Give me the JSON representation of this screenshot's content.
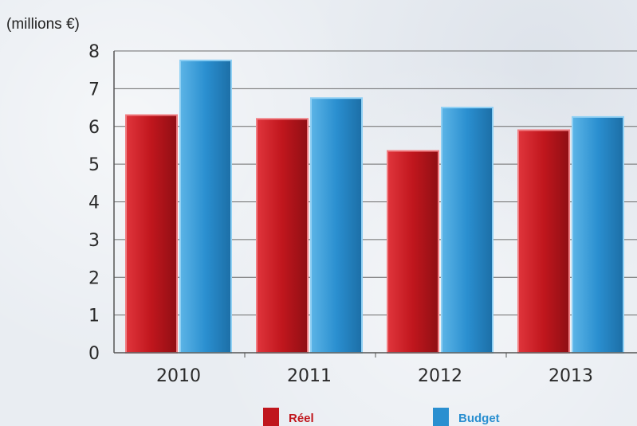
{
  "chart_data": {
    "type": "bar",
    "unit_label": "(millions €)",
    "categories": [
      "2010",
      "2011",
      "2012",
      "2013"
    ],
    "series": [
      {
        "name": "Réel",
        "color": "#c0161d",
        "values": [
          6.3,
          6.2,
          5.35,
          5.9
        ]
      },
      {
        "name": "Budget",
        "color": "#2a8fd0",
        "values": [
          7.75,
          6.75,
          6.5,
          6.25
        ]
      }
    ],
    "ylim": [
      0,
      8
    ],
    "yticks": [
      "0",
      "1",
      "2",
      "3",
      "4",
      "5",
      "6",
      "7",
      "8"
    ],
    "grid": true,
    "legend_position": "bottom"
  }
}
